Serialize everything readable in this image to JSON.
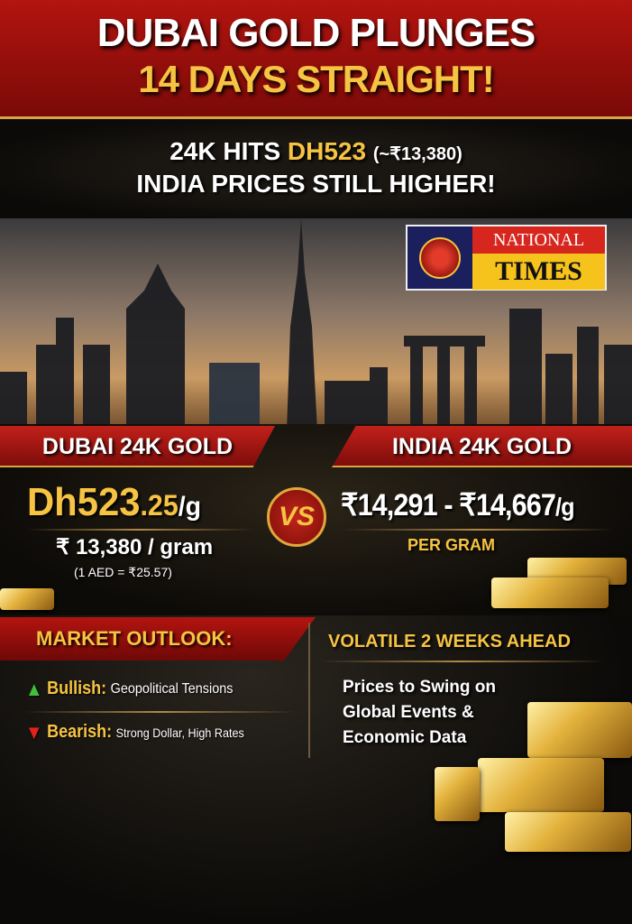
{
  "headline": {
    "line1": "DUBAI GOLD PLUNGES",
    "line2": "14 DAYS STRAIGHT!"
  },
  "subhead": {
    "prefix": "24K HITS ",
    "dubai_price": "DH523",
    "inr": "(~₹13,380)",
    "line2": "INDIA PRICES STILL HIGHER!"
  },
  "logo": {
    "line1": "NATIONAL",
    "line2": "TIMES",
    "globe_text": "NATIONAL TIMES"
  },
  "dubai": {
    "label": "DUBAI 24K GOLD",
    "price_main": "Dh523",
    "price_decimal": ".25",
    "unit": "/g",
    "inr_price": "₹ 13,380 / gram",
    "rate": "(1 AED = ₹25.57)"
  },
  "vs": "VS",
  "india": {
    "label": "INDIA 24K GOLD",
    "price_range": "₹14,291 - ₹14,667",
    "unit": "/g",
    "per": "PER GRAM"
  },
  "outlook": {
    "title": "MARKET OUTLOOK:",
    "bullish_label": "Bullish:",
    "bullish_text": "Geopolitical Tensions",
    "bearish_label": "Bearish:",
    "bearish_text": "Strong Dollar, High Rates",
    "right_title": "VOLATILE 2 WEEKS AHEAD",
    "right_lines": [
      "Prices to Swing on",
      "Global Events &",
      "Economic Data"
    ]
  },
  "colors": {
    "red": "#b3140f",
    "gold": "#f6c342",
    "bullish": "#3fbf3a",
    "bearish": "#e0241b"
  }
}
